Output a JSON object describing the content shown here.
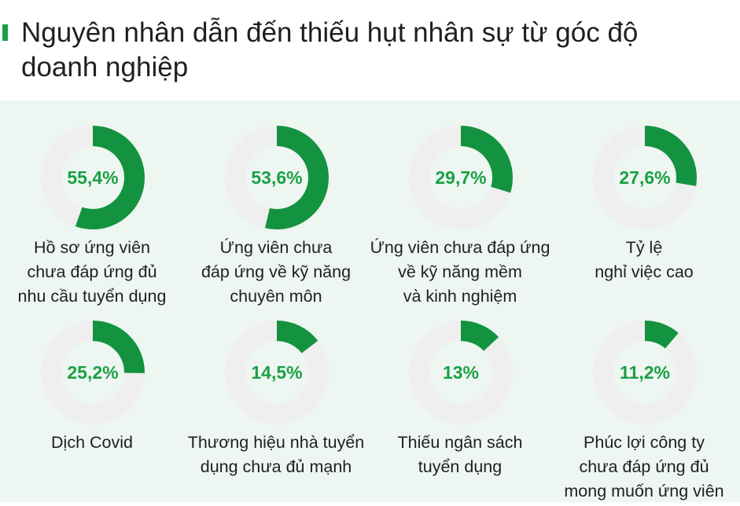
{
  "title_lines": [
    "Nguyên nhân dẫn đến thiếu hụt nhân sự từ góc độ",
    "doanh nghiệp"
  ],
  "colors": {
    "accent": "#1aa045",
    "ring_fill": "#13933f",
    "ring_track": "#efefef",
    "panel_bg": "#eef6f1",
    "percent_text": "#1aa045"
  },
  "chart_data": {
    "type": "donut",
    "unit": "%",
    "items": [
      {
        "value": 55.4,
        "percent_label": "55,4%",
        "label_lines": [
          "Hồ sơ ứng viên",
          "chưa đáp ứng đủ",
          "nhu cầu tuyển dụng"
        ]
      },
      {
        "value": 53.6,
        "percent_label": "53,6%",
        "label_lines": [
          "Ứng viên chưa",
          "đáp ứng về kỹ năng",
          "chuyên môn"
        ]
      },
      {
        "value": 29.7,
        "percent_label": "29,7%",
        "label_lines": [
          "Ứng viên chưa đáp ứng",
          "về kỹ năng mềm",
          "và kinh nghiệm"
        ]
      },
      {
        "value": 27.6,
        "percent_label": "27,6%",
        "label_lines": [
          "Tỷ lệ",
          "nghỉ việc cao"
        ]
      },
      {
        "value": 25.2,
        "percent_label": "25,2%",
        "label_lines": [
          "Dịch Covid"
        ]
      },
      {
        "value": 14.5,
        "percent_label": "14,5%",
        "label_lines": [
          "Thương hiệu nhà tuyển",
          "dụng chưa đủ mạnh"
        ]
      },
      {
        "value": 13,
        "percent_label": "13%",
        "label_lines": [
          "Thiếu ngân sách",
          "tuyển dụng"
        ]
      },
      {
        "value": 11.2,
        "percent_label": "11,2%",
        "label_lines": [
          "Phúc lợi công ty",
          "chưa đáp ứng đủ",
          "mong muốn ứng viên"
        ]
      }
    ]
  }
}
